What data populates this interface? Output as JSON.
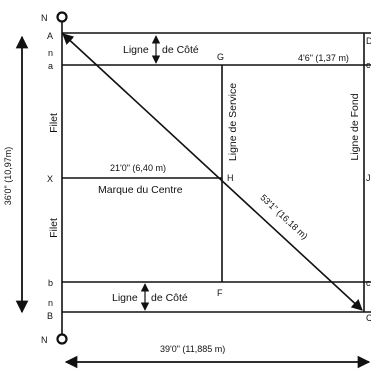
{
  "poles": {
    "top": "N",
    "bottom": "N"
  },
  "corners": {
    "A": "A",
    "B": "B",
    "D": "D",
    "C": "C"
  },
  "left_marks": {
    "n_top": "n",
    "a": "a",
    "X": "X",
    "b": "b",
    "n_bottom": "n"
  },
  "points": {
    "G": "G",
    "H": "H",
    "F": "F"
  },
  "right_marks": {
    "c_top": "c",
    "J": "J",
    "c_bottom": "c"
  },
  "labels": {
    "ligne_de_cote": "Ligne",
    "de_cote": "de Côté",
    "ligne_de_service": "Ligne de Service",
    "ligne_de_fond": "Ligne de Fond",
    "marque_du_centre": "Marque du Centre",
    "filet": "Filet"
  },
  "dimensions": {
    "height_total": "36'0\" (10,97m)",
    "width_total": "39'0\" (11,885 m)",
    "service_width": "21'0\" (6,40 m)",
    "alley": "4'6\" (1,37 m)",
    "diagonal": "53'1\" (16,18 m)"
  },
  "colors": {
    "line": "#111111",
    "background": "#ffffff"
  },
  "icons": [
    "double-arrow-icon",
    "pole-icon"
  ]
}
